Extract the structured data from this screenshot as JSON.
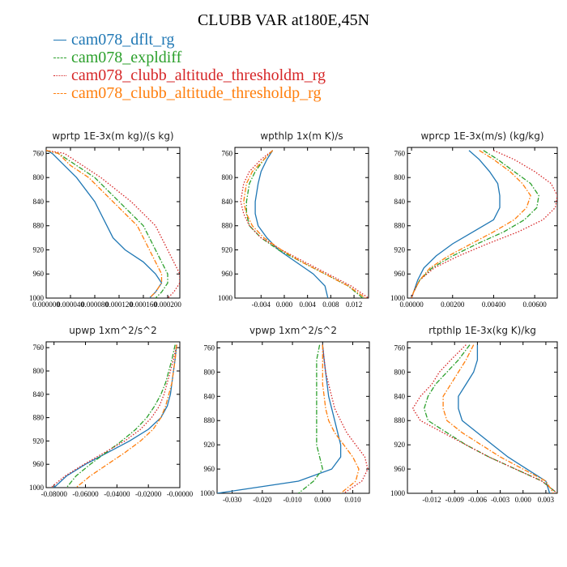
{
  "title": "CLUBB VAR at180E,45N",
  "legend": [
    {
      "label": "cam078_dflt_rg",
      "color": "#1f77b4",
      "dash": "solid"
    },
    {
      "label": "cam078_expldiff",
      "color": "#2ca02c",
      "dash": "dashdot"
    },
    {
      "label": "cam078_clubb_altitude_thresholdm_rg",
      "color": "#d62728",
      "dash": "dot"
    },
    {
      "label": "cam078_clubb_altitude_thresholdp_rg",
      "color": "#ff7f0e",
      "dash": "dashdot"
    }
  ],
  "chart_data": [
    {
      "type": "line",
      "title": "wprtp  1E-3x(m kg)/(s kg)",
      "ylim": [
        750,
        1000
      ],
      "yticks": [
        "760",
        "800",
        "840",
        "880",
        "920",
        "960",
        "1000"
      ],
      "xlim": [
        0,
        0.00022
      ],
      "xticks": [
        "0.000000",
        "0.000040",
        "0.000080",
        "0.000120",
        "0.000160",
        "0.000200"
      ],
      "y": [
        755,
        760,
        780,
        800,
        840,
        880,
        900,
        920,
        940,
        960,
        975,
        990,
        1000
      ],
      "series": [
        {
          "name": "cam078_dflt_rg",
          "values": [
            0.0,
            1e-05,
            3e-05,
            5e-05,
            8e-05,
            0.0001,
            0.00011,
            0.00013,
            0.00016,
            0.00018,
            0.00019,
            0.00018,
            0.00017
          ]
        },
        {
          "name": "cam078_expldiff",
          "values": [
            0.0,
            2e-05,
            5e-05,
            8e-05,
            0.00012,
            0.00016,
            0.00017,
            0.00018,
            0.00019,
            0.0002,
            0.0002,
            0.00019,
            0.00018
          ]
        },
        {
          "name": "cam078_clubb_altitude_thresholdm_rg",
          "values": [
            0.0,
            3e-05,
            6e-05,
            9e-05,
            0.00014,
            0.00018,
            0.00019,
            0.0002,
            0.00021,
            0.00022,
            0.00022,
            0.00021,
            0.0002
          ]
        },
        {
          "name": "cam078_clubb_altitude_thresholdp_rg",
          "values": [
            0.0,
            2e-05,
            4e-05,
            7e-05,
            0.00011,
            0.00015,
            0.00016,
            0.00017,
            0.00018,
            0.00019,
            0.00019,
            0.00018,
            0.00017
          ]
        }
      ]
    },
    {
      "type": "line",
      "title": "wpthlp  1x(m K)/s",
      "ylim": [
        750,
        1000
      ],
      "yticks": [
        "760",
        "800",
        "840",
        "880",
        "920",
        "960",
        "1000"
      ],
      "xlim": [
        -0.0085,
        0.0145
      ],
      "xticks": [
        "-0.004",
        "0.000",
        "0.004",
        "0.008",
        "0.012"
      ],
      "y": [
        755,
        770,
        790,
        810,
        840,
        860,
        880,
        900,
        920,
        940,
        960,
        980,
        1000
      ],
      "series": [
        {
          "name": "cam078_dflt_rg",
          "values": [
            -0.002,
            -0.003,
            -0.004,
            -0.0045,
            -0.005,
            -0.005,
            -0.0045,
            -0.003,
            -0.001,
            0.002,
            0.005,
            0.007,
            0.0075
          ]
        },
        {
          "name": "cam078_expldiff",
          "values": [
            -0.002,
            -0.0035,
            -0.005,
            -0.006,
            -0.0065,
            -0.0065,
            -0.006,
            -0.004,
            -0.001,
            0.003,
            0.007,
            0.011,
            0.0135
          ]
        },
        {
          "name": "cam078_clubb_altitude_thresholdm_rg",
          "values": [
            -0.002,
            -0.004,
            -0.006,
            -0.007,
            -0.0075,
            -0.007,
            -0.006,
            -0.004,
            -0.0005,
            0.0035,
            0.0075,
            0.0115,
            0.0145
          ]
        },
        {
          "name": "cam078_clubb_altitude_thresholdp_rg",
          "values": [
            -0.002,
            -0.0035,
            -0.0055,
            -0.0065,
            -0.007,
            -0.0065,
            -0.0055,
            -0.0035,
            -0.0005,
            0.003,
            0.007,
            0.011,
            0.014
          ]
        }
      ]
    },
    {
      "type": "line",
      "title": "wprcp  1E-3x(m/s) (kg/kg)",
      "ylim": [
        750,
        1000
      ],
      "yticks": [
        "760",
        "800",
        "840",
        "880",
        "920",
        "960",
        "1000"
      ],
      "xlim": [
        -0.0002,
        0.0071
      ],
      "xticks": [
        "0.00000",
        "0.00200",
        "0.00400",
        "0.00600"
      ],
      "y": [
        755,
        770,
        790,
        810,
        830,
        850,
        870,
        890,
        910,
        930,
        950,
        970,
        990,
        1000
      ],
      "series": [
        {
          "name": "cam078_dflt_rg",
          "values": [
            0.0028,
            0.0033,
            0.0038,
            0.0042,
            0.0043,
            0.0043,
            0.004,
            0.003,
            0.002,
            0.0012,
            0.0006,
            0.0003,
            0.0001,
            0.0
          ]
        },
        {
          "name": "cam078_expldiff",
          "values": [
            0.0035,
            0.0042,
            0.005,
            0.0058,
            0.0062,
            0.0061,
            0.0055,
            0.0045,
            0.0032,
            0.002,
            0.001,
            0.0004,
            0.0001,
            0.0
          ]
        },
        {
          "name": "cam078_clubb_altitude_thresholdm_rg",
          "values": [
            0.004,
            0.005,
            0.006,
            0.0068,
            0.0071,
            0.007,
            0.0064,
            0.0052,
            0.0037,
            0.0023,
            0.0011,
            0.0004,
            0.0001,
            0.0
          ]
        },
        {
          "name": "cam078_clubb_altitude_thresholdp_rg",
          "values": [
            0.0033,
            0.004,
            0.0048,
            0.0054,
            0.0058,
            0.0056,
            0.005,
            0.004,
            0.0029,
            0.0018,
            0.0009,
            0.0004,
            0.0001,
            0.0
          ]
        }
      ]
    },
    {
      "type": "line",
      "title": "upwp  1xm^2/s^2",
      "ylim": [
        750,
        1000
      ],
      "yticks": [
        "760",
        "800",
        "840",
        "880",
        "920",
        "960",
        "1000"
      ],
      "xlim": [
        -0.085,
        0.0
      ],
      "xticks": [
        "-0.08000",
        "-0.06000",
        "-0.04000",
        "-0.02000",
        "-0.00000"
      ],
      "y": [
        755,
        780,
        800,
        820,
        840,
        860,
        880,
        900,
        920,
        940,
        960,
        980,
        1000
      ],
      "series": [
        {
          "name": "cam078_dflt_rg",
          "values": [
            -0.002,
            -0.003,
            -0.004,
            -0.005,
            -0.006,
            -0.008,
            -0.012,
            -0.02,
            -0.032,
            -0.046,
            -0.06,
            -0.072,
            -0.08
          ]
        },
        {
          "name": "cam078_expldiff",
          "values": [
            -0.003,
            -0.005,
            -0.007,
            -0.009,
            -0.012,
            -0.016,
            -0.021,
            -0.028,
            -0.037,
            -0.047,
            -0.057,
            -0.066,
            -0.072
          ]
        },
        {
          "name": "cam078_clubb_altitude_thresholdm_rg",
          "values": [
            -0.002,
            -0.004,
            -0.006,
            -0.008,
            -0.01,
            -0.013,
            -0.018,
            -0.025,
            -0.035,
            -0.048,
            -0.061,
            -0.073,
            -0.082
          ]
        },
        {
          "name": "cam078_clubb_altitude_thresholdp_rg",
          "values": [
            -0.002,
            -0.003,
            -0.004,
            -0.005,
            -0.007,
            -0.009,
            -0.012,
            -0.017,
            -0.025,
            -0.035,
            -0.046,
            -0.057,
            -0.066
          ]
        }
      ]
    },
    {
      "type": "line",
      "title": "vpwp  1xm^2/s^2",
      "ylim": [
        750,
        1000
      ],
      "yticks": [
        "760",
        "800",
        "840",
        "880",
        "920",
        "960",
        "1000"
      ],
      "xlim": [
        -0.035,
        0.0155
      ],
      "xticks": [
        "-0.030",
        "-0.020",
        "-0.010",
        "0.000",
        "0.010"
      ],
      "y": [
        755,
        780,
        800,
        820,
        840,
        860,
        880,
        900,
        920,
        940,
        960,
        980,
        1000
      ],
      "series": [
        {
          "name": "cam078_dflt_rg",
          "values": [
            0.0,
            0.0005,
            0.001,
            0.0015,
            0.002,
            0.003,
            0.004,
            0.005,
            0.006,
            0.006,
            0.003,
            -0.008,
            -0.035
          ]
        },
        {
          "name": "cam078_expldiff",
          "values": [
            -0.001,
            -0.002,
            -0.002,
            -0.002,
            -0.002,
            -0.002,
            -0.002,
            -0.002,
            -0.002,
            -0.001,
            0.0,
            -0.003,
            -0.008
          ]
        },
        {
          "name": "cam078_clubb_altitude_thresholdm_rg",
          "values": [
            0.0,
            0.0005,
            0.001,
            0.002,
            0.003,
            0.004,
            0.006,
            0.008,
            0.011,
            0.014,
            0.015,
            0.013,
            0.007
          ]
        },
        {
          "name": "cam078_clubb_altitude_thresholdp_rg",
          "values": [
            0.0,
            0.0,
            0.0,
            0.0,
            0.0005,
            0.001,
            0.002,
            0.004,
            0.007,
            0.01,
            0.012,
            0.011,
            0.006
          ]
        }
      ]
    },
    {
      "type": "line",
      "title": "rtpthlp  1E-3x(kg K)/kg",
      "ylim": [
        750,
        1000
      ],
      "yticks": [
        "760",
        "800",
        "840",
        "880",
        "920",
        "960",
        "1000"
      ],
      "xlim": [
        -0.0152,
        0.0045
      ],
      "xticks": [
        "-0.012",
        "-0.009",
        "-0.006",
        "-0.003",
        "0.000",
        "0.003"
      ],
      "y": [
        755,
        780,
        800,
        820,
        840,
        860,
        880,
        900,
        920,
        940,
        960,
        980,
        1000
      ],
      "series": [
        {
          "name": "cam078_dflt_rg",
          "values": [
            -0.006,
            -0.006,
            -0.0065,
            -0.0075,
            -0.0085,
            -0.0085,
            -0.008,
            -0.006,
            -0.004,
            -0.002,
            0.0005,
            0.003,
            0.0035
          ]
        },
        {
          "name": "cam078_expldiff",
          "values": [
            -0.007,
            -0.0085,
            -0.01,
            -0.0115,
            -0.0125,
            -0.013,
            -0.0125,
            -0.01,
            -0.0075,
            -0.0045,
            -0.001,
            0.0025,
            0.0045
          ]
        },
        {
          "name": "cam078_clubb_altitude_thresholdm_rg",
          "values": [
            -0.0075,
            -0.0095,
            -0.011,
            -0.012,
            -0.0135,
            -0.0145,
            -0.0135,
            -0.0105,
            -0.0075,
            -0.0045,
            -0.001,
            0.0025,
            0.0045
          ]
        },
        {
          "name": "cam078_clubb_altitude_thresholdp_rg",
          "values": [
            -0.0065,
            -0.0075,
            -0.0085,
            -0.0095,
            -0.0105,
            -0.0105,
            -0.01,
            -0.008,
            -0.0055,
            -0.003,
            0.0,
            0.003,
            0.004
          ]
        }
      ]
    }
  ]
}
